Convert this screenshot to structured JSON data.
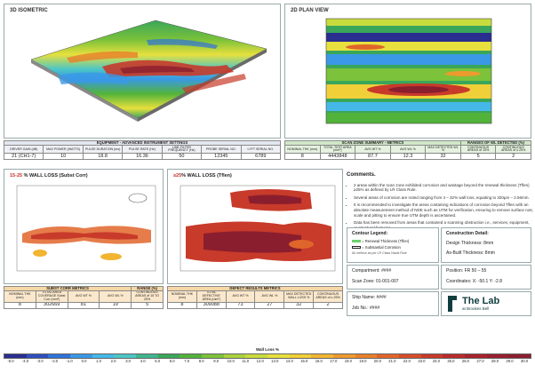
{
  "panels": {
    "iso": "3D ISOMETRIC",
    "plan": "2D PLAN VIEW"
  },
  "equipment": {
    "title": "EQUIPMENT - ADVANCED INSTRUMENT SETTINGS",
    "headers": [
      "DRIVER GAIN (dB)",
      "MAX POWER (WATTS)",
      "PULSE DURATION (ms)",
      "PULSE RATE (Hz)",
      "LINE FILTER FREQUENCY (Hz)",
      "PROBE SERIAL NO.",
      "LYFT SERIAL NO."
    ],
    "values": [
      "21 (CH1-7)",
      "10",
      "18.8",
      "16.36",
      "50",
      "12345",
      "6789"
    ]
  },
  "scan": {
    "title": "SCAN ZONE SUMMARY - METRICS",
    "ranges_title": "RANGES OF WL DETECTED (%)",
    "headers": [
      "NOMINAL THK (mm)",
      "TOTAL TEST AREA (mm²)",
      "AVG WT %",
      "AVG WL %",
      "MAX DETECTED WL %",
      "CONTINUOUS AREAS of 15%",
      "CONTINUOUS AREAS of ≥ 25%"
    ],
    "values": [
      "8",
      "4443848",
      "87.7",
      "12.3",
      "32",
      "5",
      "2"
    ]
  },
  "wl_left": {
    "prefix": "15-25",
    "suffix": " % WALL LOSS (Subst Corr)"
  },
  "wl_right": {
    "prefix": "≥25",
    "suffix": "% WALL LOSS (Tflen)"
  },
  "subst": {
    "title": "SUBST CORR METRICS",
    "range_title": "RANGE (%)",
    "headers": [
      "NOMINAL THK (mm)",
      "TOTAL AREA COVERAGE Subst Corr (mm²)",
      "AVG WT %",
      "AVG WL %",
      "CONTINUOUS AREAS of 15 TO 25%"
    ],
    "values": [
      "8",
      "302669",
      "81",
      "19",
      "5"
    ]
  },
  "defect": {
    "title": "DEFECT RESULTS METRICS",
    "headers": [
      "NOMINAL THK (mm)",
      "TOTAL DEFECTIVE AREA (mm²)",
      "AVG WT %",
      "AVG WL %",
      "MAX DETECTED WALL LOSS %",
      "CONTINUOUS AREAS of ≥ 25%"
    ],
    "values": [
      "8",
      "309088",
      "73",
      "27",
      "32",
      "2"
    ]
  },
  "comments": {
    "title": "Comments.",
    "items": [
      "2 areas within the scan zone exhibited corrosion and wastage beyond the renewal thickness (Tflen) ≥25% as defined by LR Class Rule.",
      "Several areas of corrosion are noted ranging from 4 – 32% wall loss, equating to 320µm – 2.56mm.",
      "It is recommended to investigate the areas containing indications of corrosion beyond Tflen with an absolute measurement method of NDE such as UTM for verification, ensuring to remove surface rust, scale and pitting to ensure true UTM depth is ascertained.",
      "Data has been removed from areas that contained a scanning obstruction i.e., services, equipment, or structural features."
    ]
  },
  "contour": {
    "title": "Contour Legend:",
    "renewal": "= Renewal Thickness (Tflen)",
    "subst": "= Substantial Corrosion",
    "note": "All metrics as per LR Class Naval Rule"
  },
  "construction": {
    "title": "Construction Detail:",
    "design": "Design Thickness: 8mm",
    "asbuilt": "As-Built Thickness: 8mm"
  },
  "compartment": {
    "label": "Compartment: ####",
    "scan_zone": "Scan Zone: 01-001-007"
  },
  "position": {
    "label": "Position: FR 50 – 55",
    "coords": "Coordinates: X: -50.1   Y: -2.8"
  },
  "ship": {
    "name": "Ship Name: ####",
    "job": "Job No.: ####"
  },
  "logo": {
    "name": "The Lab",
    "sub": "at Brookes Bell"
  },
  "scale": {
    "title": "Wall Loss %",
    "labels": [
      "-5.0",
      "-4.0",
      "-3.0",
      "-2.0",
      "-1.0",
      "0.0",
      "1.0",
      "2.0",
      "3.0",
      "4.0",
      "5.0",
      "6.0",
      "7.0",
      "8.0",
      "9.0",
      "10.0",
      "11.0",
      "12.0",
      "13.0",
      "14.0",
      "15.0",
      "16.0",
      "17.0",
      "18.0",
      "19.0",
      "20.0",
      "21.0",
      "22.0",
      "23.0",
      "24.0",
      "25.0",
      "26.0",
      "27.0",
      "28.0",
      "29.0",
      "30.0"
    ],
    "colors": [
      "#2a2e8f",
      "#2f4fbf",
      "#2f72d8",
      "#3a98e6",
      "#45b8e8",
      "#4cc6c6",
      "#3fb58e",
      "#3aa65a",
      "#52b33a",
      "#7cc23a",
      "#a8d23c",
      "#c9dc3d",
      "#e7e03d",
      "#f1cf38",
      "#f2b532",
      "#ee9a2e",
      "#e8802b",
      "#e0652a",
      "#d54c29",
      "#c83a2a",
      "#b82c2b",
      "#a8232c",
      "#98202e",
      "#8b1e2e"
    ]
  }
}
